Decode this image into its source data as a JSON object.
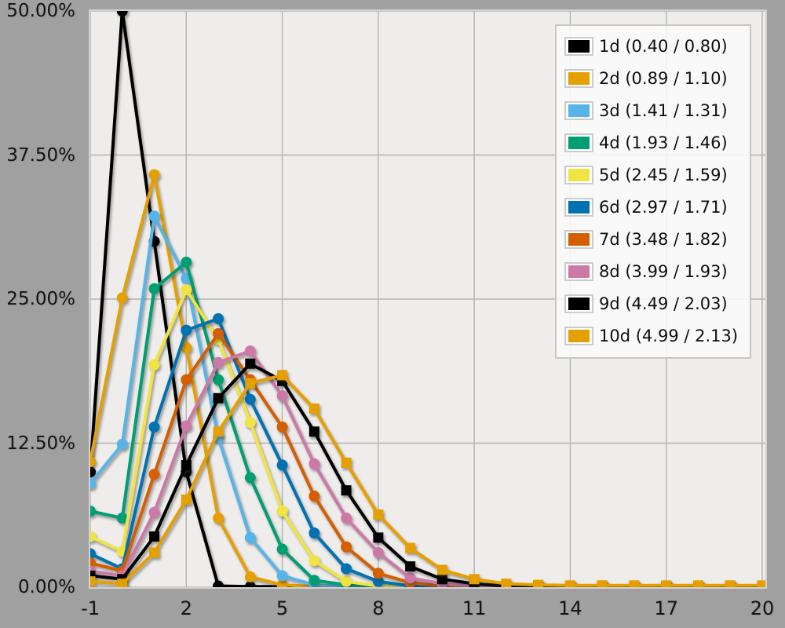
{
  "chart_data": {
    "type": "line",
    "title": "",
    "xlabel": "",
    "ylabel": "",
    "xlim": [
      -1,
      20
    ],
    "ylim": [
      0,
      50
    ],
    "grid": true,
    "legend_position": "top-right",
    "x": [
      -1,
      0,
      1,
      2,
      3,
      4,
      5,
      6,
      7,
      8,
      9,
      10,
      11,
      12,
      13,
      14,
      15,
      16,
      17,
      18,
      19,
      20
    ],
    "x_tick_labels": [
      "-1",
      "2",
      "5",
      "8",
      "11",
      "14",
      "17",
      "20"
    ],
    "x_tick_values": [
      -1,
      2,
      5,
      8,
      11,
      14,
      17,
      20
    ],
    "y_tick_labels": [
      "0.00%",
      "12.50%",
      "25.00%",
      "37.50%",
      "50.00%"
    ],
    "y_tick_values": [
      0,
      12.5,
      25,
      37.5,
      50
    ],
    "series": [
      {
        "name": "1d (0.40 / 0.80)",
        "mean": "0.40",
        "std": "0.80",
        "color": "#000000",
        "marker": "circle",
        "values": [
          10,
          50,
          30,
          10,
          0.1,
          0.05,
          0.05,
          0.05,
          0.05,
          0.05,
          0.05,
          0.05,
          0.05,
          0.05,
          0.05,
          0.05,
          0.05,
          0.05,
          0.05,
          0.05,
          0.05,
          0.05
        ]
      },
      {
        "name": "2d (0.89 / 1.10)",
        "mean": "0.89",
        "std": "1.10",
        "color": "#E69F00",
        "marker": "circle",
        "values": [
          10.9,
          25.1,
          35.8,
          20.8,
          6.0,
          0.9,
          0.2,
          0.05,
          0.05,
          0.05,
          0.05,
          0.05,
          0.05,
          0.05,
          0.05,
          0.05,
          0.05,
          0.05,
          0.05,
          0.05,
          0.05,
          0.05
        ]
      },
      {
        "name": "3d (1.41 / 1.31)",
        "mean": "1.41",
        "std": "1.31",
        "color": "#56B4E9",
        "marker": "circle",
        "values": [
          9.0,
          12.4,
          32.2,
          26.8,
          13.0,
          4.3,
          1.0,
          0.2,
          0.1,
          0.05,
          0.05,
          0.05,
          0.05,
          0.05,
          0.05,
          0.05,
          0.05,
          0.05,
          0.05,
          0.05,
          0.05,
          0.05
        ]
      },
      {
        "name": "4d (1.93 / 1.46)",
        "mean": "1.93",
        "std": "1.46",
        "color": "#009E73",
        "marker": "circle",
        "values": [
          6.6,
          6.0,
          25.9,
          28.2,
          18.0,
          9.5,
          3.3,
          0.6,
          0.2,
          0.1,
          0.05,
          0.05,
          0.05,
          0.05,
          0.05,
          0.05,
          0.05,
          0.05,
          0.05,
          0.05,
          0.05,
          0.05
        ]
      },
      {
        "name": "5d (2.45 / 1.59)",
        "mean": "2.45",
        "std": "1.59",
        "color": "#F0E442",
        "marker": "circle",
        "values": [
          4.4,
          3.1,
          19.3,
          25.8,
          21.5,
          14.3,
          6.6,
          2.3,
          0.5,
          0.1,
          0.05,
          0.05,
          0.05,
          0.05,
          0.05,
          0.05,
          0.05,
          0.05,
          0.05,
          0.05,
          0.05,
          0.05
        ]
      },
      {
        "name": "6d (2.97 / 1.71)",
        "mean": "2.97",
        "std": "1.71",
        "color": "#0072B2",
        "marker": "circle",
        "values": [
          2.9,
          1.6,
          13.9,
          22.3,
          23.3,
          16.3,
          10.6,
          4.7,
          1.6,
          0.5,
          0.1,
          0.05,
          0.05,
          0.05,
          0.05,
          0.05,
          0.05,
          0.05,
          0.05,
          0.05,
          0.05,
          0.05
        ]
      },
      {
        "name": "7d (3.48 / 1.82)",
        "mean": "3.48",
        "std": "1.82",
        "color": "#D55E00",
        "marker": "circle",
        "values": [
          2.1,
          1.4,
          9.8,
          18.0,
          22.0,
          18.0,
          13.9,
          7.9,
          3.5,
          1.2,
          0.4,
          0.1,
          0.05,
          0.05,
          0.05,
          0.05,
          0.05,
          0.05,
          0.05,
          0.05,
          0.05,
          0.05
        ]
      },
      {
        "name": "8d (3.99 / 1.93)",
        "mean": "3.99",
        "std": "1.93",
        "color": "#CC79A7",
        "marker": "circle",
        "values": [
          1.4,
          1.0,
          6.5,
          14.0,
          19.5,
          20.5,
          16.6,
          10.7,
          6.0,
          3.0,
          0.8,
          0.3,
          0.1,
          0.05,
          0.05,
          0.05,
          0.05,
          0.05,
          0.05,
          0.05,
          0.05,
          0.05
        ]
      },
      {
        "name": "9d (4.49 / 2.03)",
        "mean": "4.49",
        "std": "2.03",
        "color": "#000000",
        "marker": "square",
        "values": [
          1.0,
          0.7,
          4.4,
          10.6,
          16.4,
          19.4,
          17.9,
          13.5,
          8.4,
          4.3,
          1.8,
          0.7,
          0.3,
          0.1,
          0.08,
          0.08,
          0.08,
          0.08,
          0.08,
          0.08,
          0.08,
          0.08
        ]
      },
      {
        "name": "10d (4.99 / 2.13)",
        "mean": "4.99",
        "std": "2.13",
        "color": "#E69F00",
        "marker": "square",
        "values": [
          0.5,
          0.3,
          3.0,
          7.6,
          13.5,
          17.7,
          18.4,
          15.5,
          10.8,
          6.3,
          3.4,
          1.5,
          0.7,
          0.3,
          0.2,
          0.15,
          0.15,
          0.15,
          0.15,
          0.15,
          0.15,
          0.15
        ]
      }
    ]
  },
  "style": {
    "background": "#A0A0A0",
    "plot_background": "#EEEDEB",
    "gridline_color": "#B3B3B3",
    "legend_background": "#FBFBFA",
    "text_color": "#141414"
  }
}
